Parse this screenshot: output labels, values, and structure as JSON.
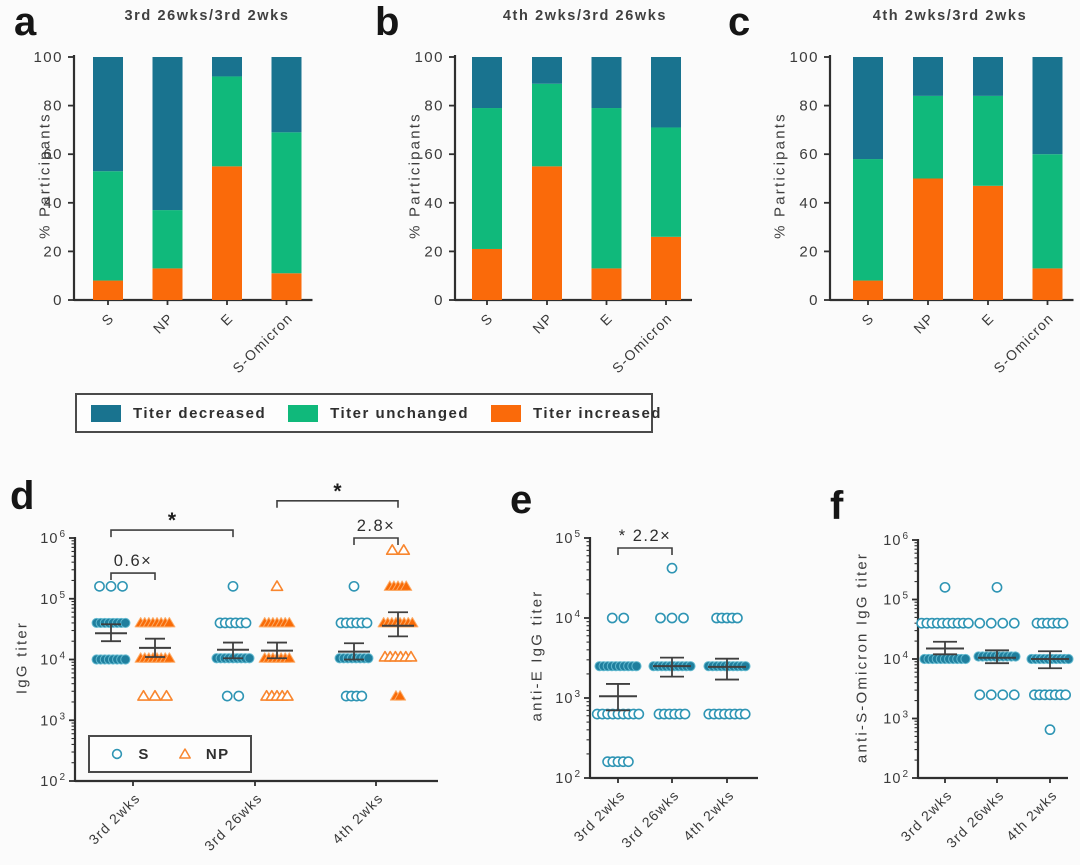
{
  "figure": {
    "background": "#fbfbfb",
    "colors": {
      "axis": "#2f2f2f",
      "decreased": "#19738f",
      "unchanged": "#10b97b",
      "increased": "#fa6a0a",
      "stats": "#3f3f3f",
      "s_open": "#2f95b4",
      "s_fill": "#1f7f9e",
      "s_edge": "#62b9cf",
      "np_open": "#f8862f",
      "np_fill": "#f96b07",
      "np_edge": "#fcab67"
    },
    "bar_legend": {
      "items": [
        {
          "label": "Titer decreased",
          "color_key": "decreased"
        },
        {
          "label": "Titer unchanged",
          "color_key": "unchanged"
        },
        {
          "label": "Titer increased",
          "color_key": "increased"
        }
      ]
    }
  },
  "chart_data": [
    {
      "id": "a",
      "panel_letter": "a",
      "type": "bar",
      "stacked": true,
      "title": "3rd 26wks/3rd 2wks",
      "ylabel": "% Participants",
      "ylim": [
        0,
        100
      ],
      "yticks": [
        0,
        20,
        40,
        60,
        80,
        100
      ],
      "categories": [
        "S",
        "NP",
        "E",
        "S-Omicron"
      ],
      "series": [
        {
          "name": "Titer increased",
          "color_key": "increased",
          "values": [
            8,
            13,
            55,
            11
          ]
        },
        {
          "name": "Titer unchanged",
          "color_key": "unchanged",
          "values": [
            45,
            24,
            37,
            58
          ]
        },
        {
          "name": "Titer decreased",
          "color_key": "decreased",
          "values": [
            47,
            63,
            8,
            31
          ]
        }
      ]
    },
    {
      "id": "b",
      "panel_letter": "b",
      "type": "bar",
      "stacked": true,
      "title": "4th 2wks/3rd 26wks",
      "ylabel": "% Participants",
      "ylim": [
        0,
        100
      ],
      "yticks": [
        0,
        20,
        40,
        60,
        80,
        100
      ],
      "categories": [
        "S",
        "NP",
        "E",
        "S-Omicron"
      ],
      "series": [
        {
          "name": "Titer increased",
          "color_key": "increased",
          "values": [
            21,
            55,
            13,
            26
          ]
        },
        {
          "name": "Titer unchanged",
          "color_key": "unchanged",
          "values": [
            58,
            34,
            66,
            45
          ]
        },
        {
          "name": "Titer decreased",
          "color_key": "decreased",
          "values": [
            21,
            11,
            21,
            29
          ]
        }
      ]
    },
    {
      "id": "c",
      "panel_letter": "c",
      "type": "bar",
      "stacked": true,
      "title": "4th 2wks/3rd 2wks",
      "ylabel": "% Participants",
      "ylim": [
        0,
        100
      ],
      "yticks": [
        0,
        20,
        40,
        60,
        80,
        100
      ],
      "categories": [
        "S",
        "NP",
        "E",
        "S-Omicron"
      ],
      "series": [
        {
          "name": "Titer increased",
          "color_key": "increased",
          "values": [
            8,
            50,
            47,
            13
          ]
        },
        {
          "name": "Titer unchanged",
          "color_key": "unchanged",
          "values": [
            50,
            34,
            37,
            47
          ]
        },
        {
          "name": "Titer decreased",
          "color_key": "decreased",
          "values": [
            42,
            16,
            16,
            40
          ]
        }
      ]
    },
    {
      "id": "d",
      "panel_letter": "d",
      "type": "scatter",
      "ylabel": "IgG titer",
      "yscale": "log",
      "ylim": [
        100,
        1000000
      ],
      "categories": [
        "3rd 2wks",
        "3rd 26wks",
        "4th 2wks"
      ],
      "series": [
        {
          "name": "S",
          "marker": "circle",
          "groups": [
            [
              {
                "v": 160000,
                "n": 3,
                "mode": "open"
              },
              {
                "v": 40000,
                "n": 8,
                "mode": "dense"
              },
              {
                "v": 10000,
                "n": 8,
                "mode": "dense"
              }
            ],
            [
              {
                "v": 160000,
                "n": 1,
                "mode": "open"
              },
              {
                "v": 40000,
                "n": 6,
                "mode": "packed"
              },
              {
                "v": 10500,
                "n": 9,
                "mode": "dense"
              },
              {
                "v": 2500,
                "n": 2,
                "mode": "open"
              }
            ],
            [
              {
                "v": 160000,
                "n": 1,
                "mode": "open"
              },
              {
                "v": 40000,
                "n": 6,
                "mode": "packed"
              },
              {
                "v": 10500,
                "n": 8,
                "mode": "dense"
              },
              {
                "v": 2500,
                "n": 4,
                "mode": "packed"
              }
            ]
          ],
          "stats": [
            {
              "mean": 27000,
              "lo": 20000,
              "hi": 38000
            },
            {
              "mean": 14500,
              "lo": 10500,
              "hi": 19000
            },
            {
              "mean": 13500,
              "lo": 10000,
              "hi": 18500
            }
          ]
        },
        {
          "name": "NP",
          "marker": "triangle",
          "groups": [
            [
              {
                "v": 40000,
                "n": 8,
                "mode": "dense"
              },
              {
                "v": 10500,
                "n": 8,
                "mode": "dense"
              },
              {
                "v": 2500,
                "n": 3,
                "mode": "open"
              }
            ],
            [
              {
                "v": 160000,
                "n": 1,
                "mode": "open"
              },
              {
                "v": 40000,
                "n": 7,
                "mode": "dense"
              },
              {
                "v": 10500,
                "n": 7,
                "mode": "dense"
              },
              {
                "v": 2500,
                "n": 5,
                "mode": "packed"
              }
            ],
            [
              {
                "v": 630000,
                "n": 2,
                "mode": "open"
              },
              {
                "v": 160000,
                "n": 5,
                "mode": "dense"
              },
              {
                "v": 40000,
                "n": 8,
                "mode": "dense"
              },
              {
                "v": 11000,
                "n": 6,
                "mode": "packed"
              },
              {
                "v": 2500,
                "n": 2,
                "mode": "dense"
              }
            ]
          ],
          "stats": [
            {
              "mean": 15500,
              "lo": 11000,
              "hi": 22000
            },
            {
              "mean": 14000,
              "lo": 10500,
              "hi": 19000
            },
            {
              "mean": 36000,
              "lo": 24000,
              "hi": 60000
            }
          ]
        }
      ],
      "annotations": [
        {
          "kind": "bracket",
          "from": {
            "g": 0,
            "s": "S"
          },
          "to": {
            "g": 1,
            "s": "S"
          },
          "v": 1350000,
          "label": "*"
        },
        {
          "kind": "bracket",
          "from": {
            "g": 0,
            "s": "S"
          },
          "to": {
            "g": 0,
            "s": "NP"
          },
          "v": 265000,
          "label": "0.6×"
        },
        {
          "kind": "bracket",
          "from": {
            "g": 1,
            "s": "NP"
          },
          "to": {
            "g": 2,
            "s": "NP"
          },
          "v": 4100000,
          "label": "*"
        },
        {
          "kind": "bracket",
          "from": {
            "g": 2,
            "s": "S"
          },
          "to": {
            "g": 2,
            "s": "NP"
          },
          "v": 1000000,
          "label": "2.8×"
        }
      ],
      "legend": {
        "items": [
          {
            "label": "S",
            "marker": "circle"
          },
          {
            "label": "NP",
            "marker": "triangle"
          }
        ]
      }
    },
    {
      "id": "e",
      "panel_letter": "e",
      "type": "scatter",
      "ylabel": "anti-E IgG titer",
      "yscale": "log",
      "ylim": [
        100,
        100000
      ],
      "categories": [
        "3rd 2wks",
        "3rd 26wks",
        "4th 2wks"
      ],
      "series": [
        {
          "name": "S",
          "marker": "circle",
          "groups": [
            [
              {
                "v": 10000,
                "n": 2,
                "mode": "open"
              },
              {
                "v": 2500,
                "n": 10,
                "mode": "dense"
              },
              {
                "v": 630,
                "n": 9,
                "mode": "packed"
              },
              {
                "v": 160,
                "n": 5,
                "mode": "packed"
              }
            ],
            [
              {
                "v": 42000,
                "n": 1,
                "mode": "open"
              },
              {
                "v": 10000,
                "n": 3,
                "mode": "open"
              },
              {
                "v": 2500,
                "n": 10,
                "mode": "dense"
              },
              {
                "v": 630,
                "n": 6,
                "mode": "packed"
              }
            ],
            [
              {
                "v": 10000,
                "n": 5,
                "mode": "packed"
              },
              {
                "v": 2500,
                "n": 10,
                "mode": "dense"
              },
              {
                "v": 630,
                "n": 8,
                "mode": "packed"
              }
            ]
          ],
          "stats": [
            {
              "mean": 1050,
              "lo": 700,
              "hi": 1500
            },
            {
              "mean": 2500,
              "lo": 1850,
              "hi": 3200
            },
            {
              "mean": 2450,
              "lo": 1700,
              "hi": 3100
            }
          ]
        }
      ],
      "annotations": [
        {
          "kind": "bracket",
          "from": {
            "g": 0,
            "s": "S"
          },
          "to": {
            "g": 1,
            "s": "S"
          },
          "v": 75000,
          "label": "* 2.2×"
        }
      ]
    },
    {
      "id": "f",
      "panel_letter": "f",
      "type": "scatter",
      "ylabel": "anti-S-Omicron IgG titer",
      "yscale": "log",
      "ylim": [
        100,
        1000000
      ],
      "categories": [
        "3rd 2wks",
        "3rd 26wks",
        "4th 2wks"
      ],
      "series": [
        {
          "name": "S",
          "marker": "circle",
          "groups": [
            [
              {
                "v": 160000,
                "n": 1,
                "mode": "open"
              },
              {
                "v": 40000,
                "n": 10,
                "mode": "packed"
              },
              {
                "v": 10000,
                "n": 11,
                "mode": "dense"
              }
            ],
            [
              {
                "v": 160000,
                "n": 1,
                "mode": "open"
              },
              {
                "v": 40000,
                "n": 4,
                "mode": "open"
              },
              {
                "v": 11000,
                "n": 10,
                "mode": "dense"
              },
              {
                "v": 2500,
                "n": 4,
                "mode": "open"
              }
            ],
            [
              {
                "v": 40000,
                "n": 6,
                "mode": "packed"
              },
              {
                "v": 10000,
                "n": 10,
                "mode": "dense"
              },
              {
                "v": 2500,
                "n": 7,
                "mode": "packed"
              },
              {
                "v": 650,
                "n": 1,
                "mode": "open"
              }
            ]
          ],
          "stats": [
            {
              "mean": 15000,
              "lo": 12000,
              "hi": 19500
            },
            {
              "mean": 10500,
              "lo": 8500,
              "hi": 14000
            },
            {
              "mean": 10000,
              "lo": 7000,
              "hi": 13500
            }
          ]
        }
      ],
      "annotations": []
    }
  ]
}
